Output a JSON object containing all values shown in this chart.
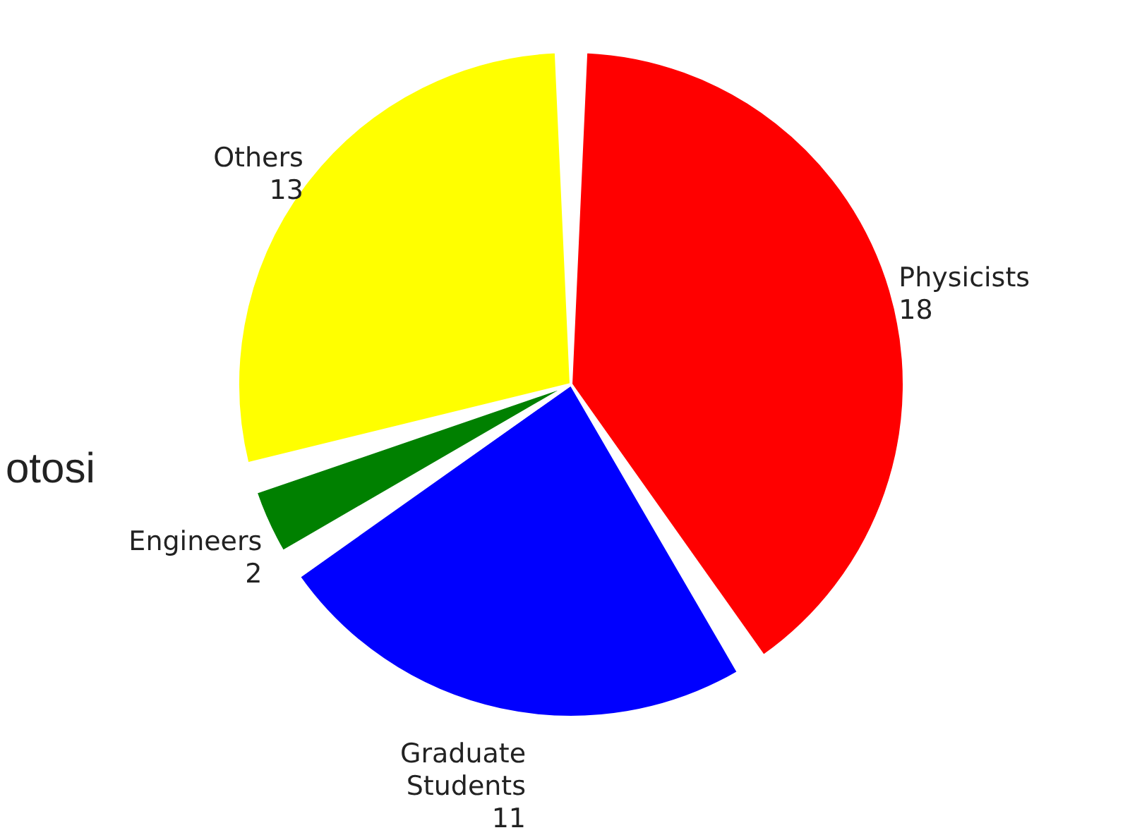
{
  "chart_data": {
    "type": "pie",
    "categories": [
      "Physicists",
      "Graduate Students",
      "Engineers",
      "Others"
    ],
    "values": [
      18,
      11,
      2,
      13
    ],
    "colors": [
      "#ff0000",
      "#0000ff",
      "#008000",
      "#ffff00"
    ],
    "data_labels": true,
    "annotations": [
      "otosi"
    ]
  }
}
